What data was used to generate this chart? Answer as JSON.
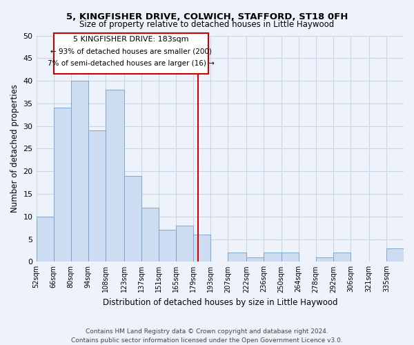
{
  "title": "5, KINGFISHER DRIVE, COLWICH, STAFFORD, ST18 0FH",
  "subtitle": "Size of property relative to detached houses in Little Haywood",
  "xlabel": "Distribution of detached houses by size in Little Haywood",
  "ylabel": "Number of detached properties",
  "bin_labels": [
    "52sqm",
    "66sqm",
    "80sqm",
    "94sqm",
    "108sqm",
    "123sqm",
    "137sqm",
    "151sqm",
    "165sqm",
    "179sqm",
    "193sqm",
    "207sqm",
    "222sqm",
    "236sqm",
    "250sqm",
    "264sqm",
    "278sqm",
    "292sqm",
    "306sqm",
    "321sqm",
    "335sqm"
  ],
  "bar_heights": [
    10,
    34,
    40,
    29,
    38,
    19,
    12,
    7,
    8,
    6,
    0,
    2,
    1,
    2,
    2,
    0,
    1,
    2,
    0,
    0,
    3
  ],
  "bar_color": "#cddcf0",
  "bar_edge_color": "#6fa0cc",
  "grid_color": "#c8d4e8",
  "background_color": "#eef2fa",
  "vline_color": "#cc0000",
  "annotation_line1": "5 KINGFISHER DRIVE: 183sqm",
  "annotation_line2": "← 93% of detached houses are smaller (200)",
  "annotation_line3": "7% of semi-detached houses are larger (16) →",
  "annotation_box_edge": "#cc0000",
  "ylim": [
    0,
    50
  ],
  "yticks": [
    0,
    5,
    10,
    15,
    20,
    25,
    30,
    35,
    40,
    45,
    50
  ],
  "footer_line1": "Contains HM Land Registry data © Crown copyright and database right 2024.",
  "footer_line2": "Contains public sector information licensed under the Open Government Licence v3.0.",
  "bin_edges": [
    52,
    66,
    80,
    94,
    108,
    123,
    137,
    151,
    165,
    179,
    193,
    207,
    222,
    236,
    250,
    264,
    278,
    292,
    306,
    321,
    335,
    349
  ],
  "vline_bin_index": 9,
  "vline_x_data": 183
}
